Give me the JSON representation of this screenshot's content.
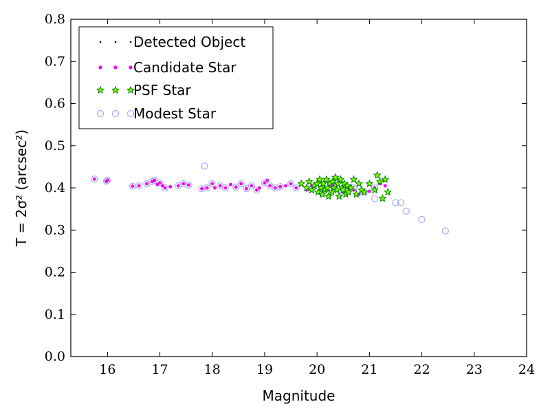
{
  "chart_data": {
    "type": "scatter",
    "xlabel": "Magnitude",
    "ylabel": "T = 2σ² (arcsec²)",
    "xlim": [
      15.3,
      24
    ],
    "ylim": [
      0,
      0.8
    ],
    "xticks": [
      "16",
      "17",
      "18",
      "19",
      "20",
      "21",
      "22",
      "23",
      "24"
    ],
    "yticks": [
      "0.0",
      "0.1",
      "0.2",
      "0.3",
      "0.4",
      "0.5",
      "0.6",
      "0.7",
      "0.8"
    ],
    "legend_position": "top-left",
    "legend": [
      "Detected Object",
      "Candidate Star",
      "PSF Star",
      "Modest Star"
    ],
    "colors": {
      "detected": "#000000",
      "candidate": "#ff00ff",
      "psf": "#007f00",
      "psf_fill": "#7fff00",
      "modest": "#a8a8ff"
    },
    "series": [
      {
        "name": "Candidate Star",
        "x": [
          15.75,
          15.98,
          16.0,
          16.48,
          16.6,
          16.75,
          16.85,
          16.9,
          16.95,
          17.0,
          17.05,
          17.1,
          17.2,
          17.35,
          17.45,
          17.55,
          17.8,
          17.9,
          18.0,
          18.05,
          18.15,
          18.25,
          18.35,
          18.45,
          18.55,
          18.65,
          18.75,
          18.85,
          18.9,
          19.0,
          19.05,
          19.1,
          19.2,
          19.3,
          19.4,
          19.5,
          19.6,
          19.8,
          19.9,
          20.0,
          20.1,
          20.2,
          20.3,
          20.4,
          20.5,
          20.6,
          20.7,
          20.8,
          20.9,
          21.0,
          21.1,
          21.2,
          21.3
        ],
        "y": [
          0.421,
          0.416,
          0.418,
          0.404,
          0.405,
          0.41,
          0.415,
          0.418,
          0.408,
          0.412,
          0.405,
          0.4,
          0.403,
          0.405,
          0.41,
          0.407,
          0.398,
          0.4,
          0.41,
          0.4,
          0.405,
          0.4,
          0.408,
          0.402,
          0.41,
          0.398,
          0.405,
          0.395,
          0.4,
          0.412,
          0.418,
          0.405,
          0.4,
          0.403,
          0.405,
          0.41,
          0.4,
          0.395,
          0.405,
          0.41,
          0.4,
          0.395,
          0.405,
          0.41,
          0.39,
          0.4,
          0.395,
          0.385,
          0.39,
          0.392,
          0.4,
          0.41,
          0.405
        ]
      },
      {
        "name": "PSF Star",
        "x": [
          19.7,
          19.8,
          19.85,
          19.9,
          19.95,
          20.0,
          20.02,
          20.05,
          20.08,
          20.1,
          20.12,
          20.15,
          20.18,
          20.2,
          20.22,
          20.25,
          20.28,
          20.3,
          20.32,
          20.35,
          20.38,
          20.4,
          20.42,
          20.45,
          20.48,
          20.5,
          20.52,
          20.55,
          20.58,
          20.6,
          20.65,
          20.7,
          20.75,
          20.8,
          20.85,
          20.9,
          21.0,
          21.1,
          21.15,
          21.2,
          21.25,
          21.3,
          21.35
        ],
        "y": [
          0.41,
          0.4,
          0.415,
          0.395,
          0.405,
          0.41,
          0.39,
          0.42,
          0.4,
          0.385,
          0.41,
          0.395,
          0.42,
          0.4,
          0.38,
          0.41,
          0.39,
          0.415,
          0.4,
          0.425,
          0.395,
          0.41,
          0.38,
          0.42,
          0.4,
          0.395,
          0.41,
          0.385,
          0.405,
          0.39,
          0.4,
          0.42,
          0.385,
          0.41,
          0.395,
          0.39,
          0.41,
          0.395,
          0.43,
          0.415,
          0.375,
          0.42,
          0.39
        ]
      },
      {
        "name": "Modest Star",
        "x": [
          15.75,
          15.98,
          16.0,
          16.48,
          16.6,
          16.75,
          16.85,
          16.9,
          17.0,
          17.1,
          17.35,
          17.45,
          17.55,
          17.8,
          17.85,
          17.9,
          18.0,
          18.15,
          18.25,
          18.45,
          18.55,
          18.65,
          18.75,
          18.85,
          19.0,
          19.1,
          19.2,
          19.3,
          19.5,
          19.6,
          19.9,
          20.1,
          20.3,
          20.5,
          20.7,
          20.9,
          21.1,
          21.1,
          21.5,
          21.6,
          21.7,
          22.0,
          22.45
        ],
        "y": [
          0.421,
          0.416,
          0.418,
          0.404,
          0.405,
          0.41,
          0.415,
          0.418,
          0.412,
          0.4,
          0.405,
          0.41,
          0.407,
          0.398,
          0.452,
          0.4,
          0.41,
          0.405,
          0.4,
          0.402,
          0.41,
          0.398,
          0.405,
          0.395,
          0.412,
          0.405,
          0.4,
          0.403,
          0.41,
          0.4,
          0.405,
          0.4,
          0.405,
          0.39,
          0.4,
          0.39,
          0.4,
          0.375,
          0.365,
          0.365,
          0.345,
          0.325,
          0.298
        ]
      }
    ]
  }
}
